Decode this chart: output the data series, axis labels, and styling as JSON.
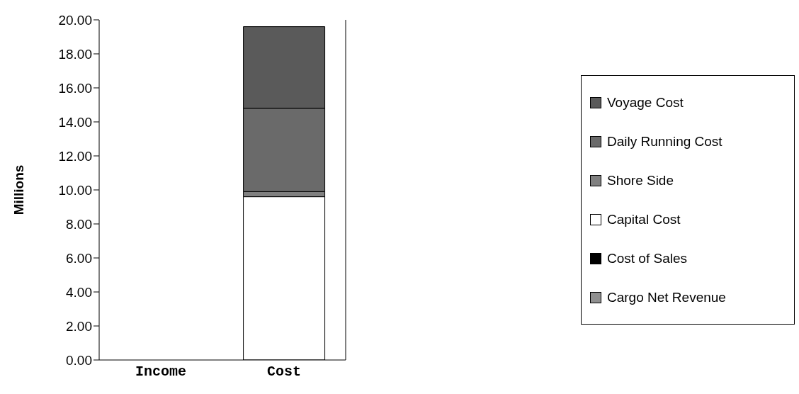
{
  "chart_data": {
    "type": "bar",
    "stacked": true,
    "ylabel": "Millions",
    "categories": [
      "Income",
      "Cost"
    ],
    "series": [
      {
        "name": "Cargo Net Revenue",
        "color": "#909090",
        "values": [
          0,
          null
        ]
      },
      {
        "name": "Cost of Sales",
        "color": "#000000",
        "values": [
          0,
          null
        ]
      },
      {
        "name": "Capital Cost",
        "color": "#ffffff",
        "values": [
          null,
          9.6
        ]
      },
      {
        "name": "Shore Side",
        "color": "#808080",
        "values": [
          null,
          0.3
        ]
      },
      {
        "name": "Daily Running Cost",
        "color": "#6a6a6a",
        "values": [
          null,
          4.9
        ]
      },
      {
        "name": "Voyage Cost",
        "color": "#5a5a5a",
        "values": [
          null,
          4.8
        ]
      }
    ],
    "ylim": [
      0,
      20
    ],
    "yticks": [
      {
        "value": 0,
        "label": "0.00"
      },
      {
        "value": 2,
        "label": "2.00"
      },
      {
        "value": 4,
        "label": "4.00"
      },
      {
        "value": 6,
        "label": "6.00"
      },
      {
        "value": 8,
        "label": "8.00"
      },
      {
        "value": 10,
        "label": "10.00"
      },
      {
        "value": 12,
        "label": "12.00"
      },
      {
        "value": 14,
        "label": "14.00"
      },
      {
        "value": 16,
        "label": "16.00"
      },
      {
        "value": 18,
        "label": "18.00"
      },
      {
        "value": 20,
        "label": "20.00"
      }
    ],
    "grid": false,
    "legend": "right"
  }
}
